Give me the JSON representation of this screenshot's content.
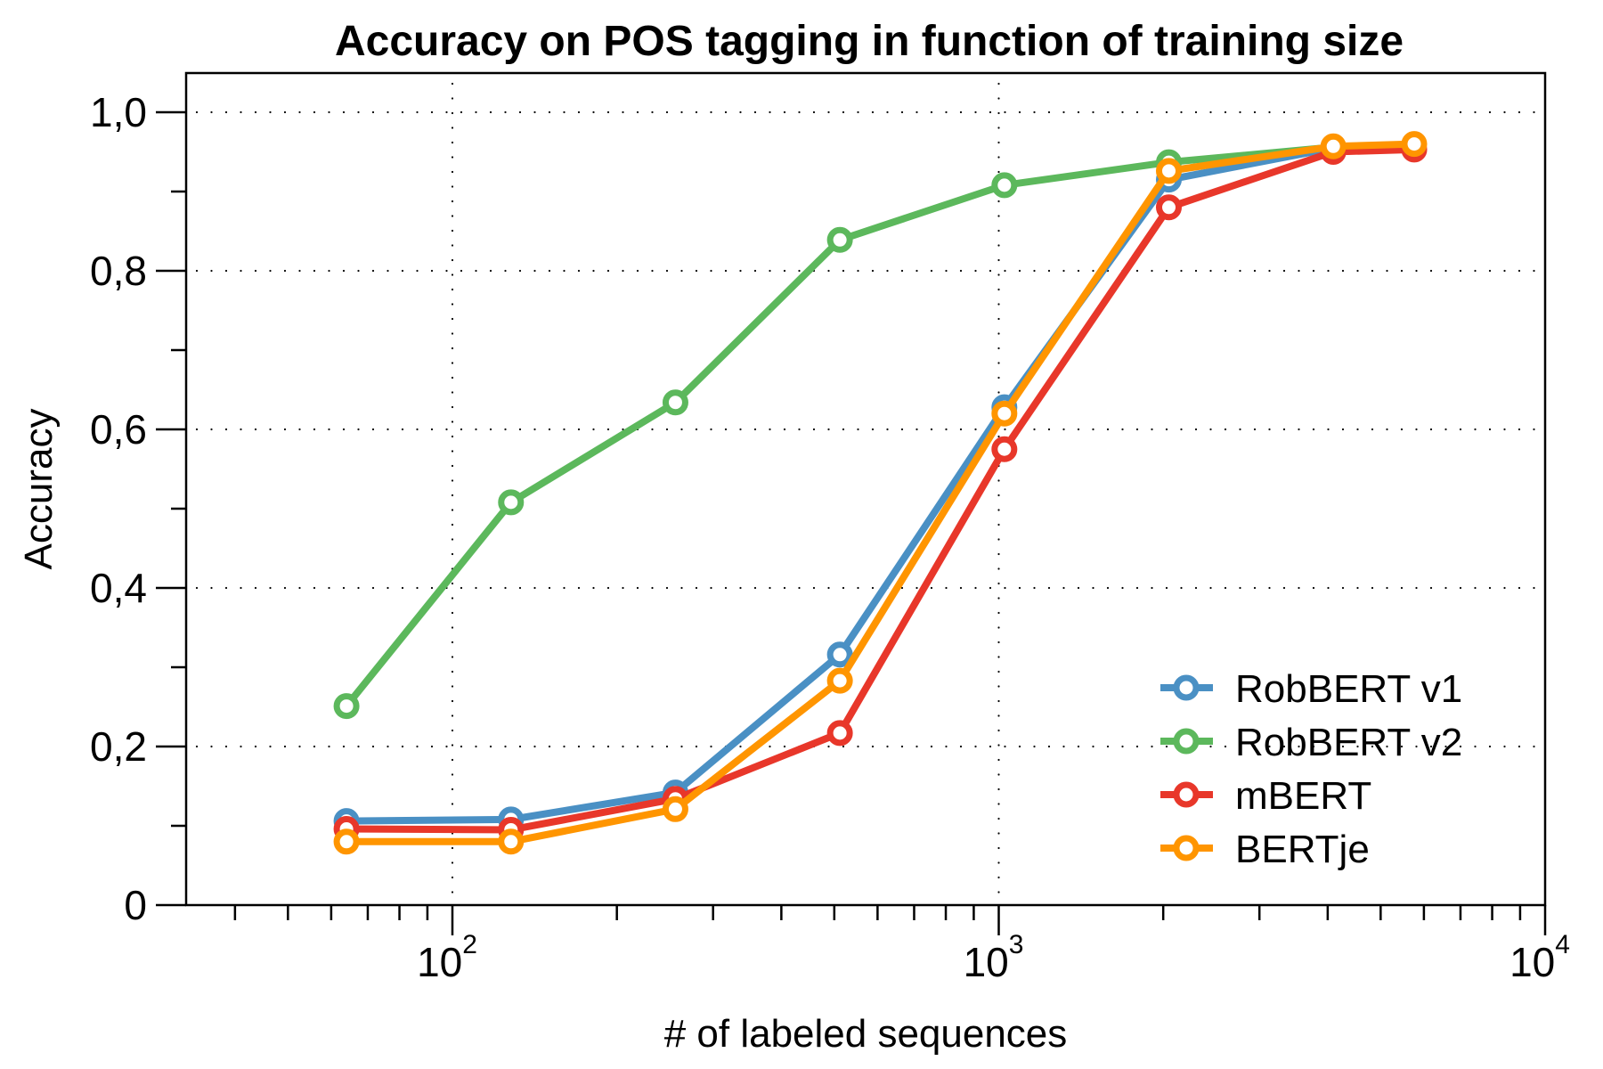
{
  "chart_data": {
    "type": "line",
    "title": "Accuracy on POS tagging in function of training size",
    "xlabel": "# of labeled sequences",
    "ylabel": "Accuracy",
    "xscale": "log",
    "xlim": [
      32.6,
      10000
    ],
    "ylim": [
      0,
      1.05
    ],
    "grid": true,
    "legend_position": "lower right",
    "x_ticks": [
      {
        "value": 100,
        "base": "10",
        "exp": "2"
      },
      {
        "value": 1000,
        "base": "10",
        "exp": "3"
      },
      {
        "value": 10000,
        "base": "10",
        "exp": "4"
      }
    ],
    "y_ticks": [
      {
        "value": 0,
        "label": "0"
      },
      {
        "value": 0.2,
        "label": "0,2"
      },
      {
        "value": 0.4,
        "label": "0,4"
      },
      {
        "value": 0.6,
        "label": "0,6"
      },
      {
        "value": 0.8,
        "label": "0,8"
      },
      {
        "value": 1.0,
        "label": "1,0"
      }
    ],
    "x": [
      64,
      128,
      256,
      512,
      1024,
      2048,
      4096,
      5760
    ],
    "series": [
      {
        "name": "RobBERT v1",
        "color": "#4a90c4",
        "values": [
          0.106,
          0.108,
          0.142,
          0.316,
          0.628,
          0.915,
          0.955,
          null
        ]
      },
      {
        "name": "RobBERT v2",
        "color": "#5cb85c",
        "values": [
          0.251,
          0.508,
          0.634,
          0.839,
          0.908,
          0.937,
          0.956,
          null
        ]
      },
      {
        "name": "mBERT",
        "color": "#e8372a",
        "values": [
          0.096,
          0.095,
          0.134,
          0.217,
          0.575,
          0.88,
          0.95,
          0.953
        ]
      },
      {
        "name": "BERTje",
        "color": "#ff9500",
        "values": [
          0.08,
          0.08,
          0.121,
          0.283,
          0.62,
          0.926,
          0.957,
          0.96
        ]
      }
    ]
  }
}
